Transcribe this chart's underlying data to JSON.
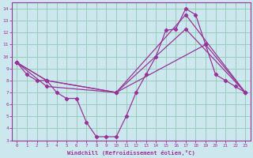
{
  "xlabel": "Windchill (Refroidissement éolien,°C)",
  "background_color": "#cce8ee",
  "grid_color": "#99ccbb",
  "line_color": "#993399",
  "xlim": [
    -0.5,
    23.5
  ],
  "ylim": [
    3,
    14.5
  ],
  "xticks": [
    0,
    1,
    2,
    3,
    4,
    5,
    6,
    7,
    8,
    9,
    10,
    11,
    12,
    13,
    14,
    15,
    16,
    17,
    18,
    19,
    20,
    21,
    22,
    23
  ],
  "yticks": [
    3,
    4,
    5,
    6,
    7,
    8,
    9,
    10,
    11,
    12,
    13,
    14
  ],
  "line1_x": [
    0,
    1,
    2,
    3,
    4,
    5,
    6,
    7,
    8,
    9,
    10,
    11,
    12,
    13,
    14,
    15,
    16,
    17,
    18,
    19,
    20,
    21,
    22,
    23
  ],
  "line1_y": [
    9.5,
    8.5,
    8.0,
    8.0,
    7.0,
    6.5,
    6.5,
    4.5,
    3.3,
    3.3,
    3.3,
    5.0,
    7.0,
    8.5,
    10.0,
    12.2,
    12.3,
    14.0,
    13.5,
    11.0,
    8.5,
    8.0,
    7.5,
    7.0
  ],
  "line2_x": [
    0,
    3,
    10,
    17,
    23
  ],
  "line2_y": [
    9.5,
    8.0,
    7.0,
    13.5,
    7.0
  ],
  "line3_x": [
    0,
    3,
    10,
    17,
    23
  ],
  "line3_y": [
    9.5,
    8.0,
    7.0,
    12.3,
    7.0
  ],
  "line4_x": [
    0,
    3,
    10,
    19,
    23
  ],
  "line4_y": [
    9.5,
    7.5,
    7.0,
    11.0,
    7.0
  ]
}
